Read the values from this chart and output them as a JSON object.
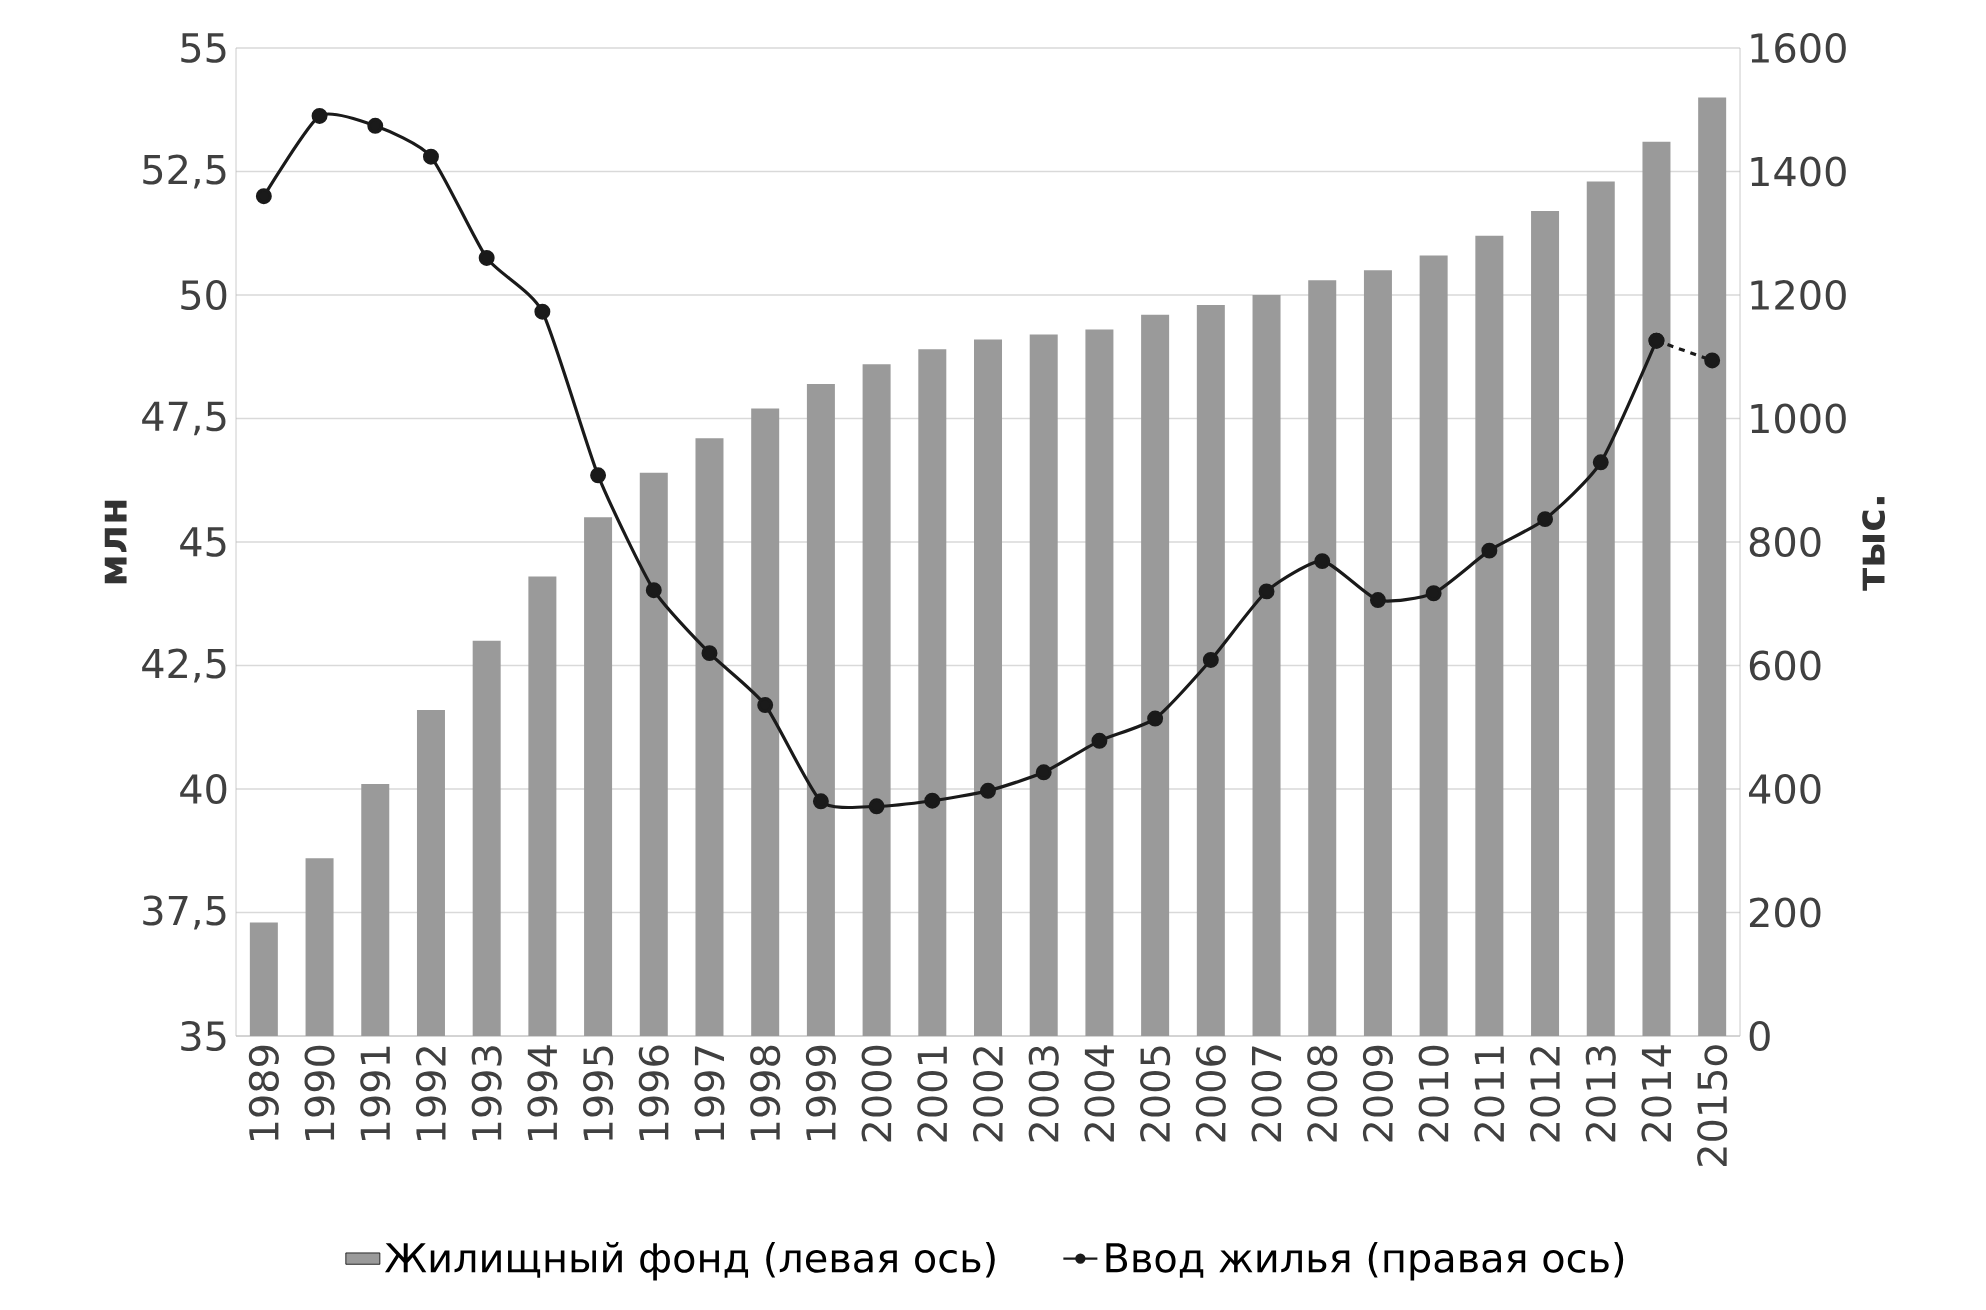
{
  "chart_data": {
    "type": "bar",
    "categories": [
      "1989",
      "1990",
      "1991",
      "1992",
      "1993",
      "1994",
      "1995",
      "1996",
      "1997",
      "1998",
      "1999",
      "2000",
      "2001",
      "2002",
      "2003",
      "2004",
      "2005",
      "2006",
      "2007",
      "2008",
      "2009",
      "2010",
      "2011",
      "2012",
      "2013",
      "2014",
      "2015о"
    ],
    "ylabel": "млн",
    "y2label": "тыс.",
    "ylim": [
      35,
      55
    ],
    "yticks": [
      35,
      {
        "value": 37.5,
        "label": "37,5"
      },
      40,
      {
        "value": 42.5,
        "label": "42,5"
      },
      45,
      {
        "value": 47.5,
        "label": "47,5"
      },
      50,
      {
        "value": 52.5,
        "label": "52,5"
      },
      55
    ],
    "y2lim": [
      0,
      1600
    ],
    "y2ticks": [
      0,
      200,
      400,
      600,
      800,
      1000,
      1200,
      1400,
      1600
    ],
    "grid": "y",
    "legend": "bottom",
    "series": [
      {
        "name": "Жилищный фонд (левая ось)",
        "color": "#9a9a9a",
        "values": [
          37.3,
          38.6,
          40.1,
          41.6,
          43.0,
          44.3,
          45.5,
          46.4,
          47.1,
          47.7,
          48.2,
          48.6,
          48.9,
          49.1,
          49.2,
          49.3,
          49.6,
          49.8,
          50.0,
          50.3,
          50.5,
          50.8,
          51.2,
          51.7,
          52.3,
          53.1,
          54.0
        ]
      },
      {
        "name": "Ввод жилья (правая ось)",
        "type": "line",
        "axis": "y2",
        "color": "#1a1a1a",
        "marker": "circle",
        "line_style": "solid",
        "values": [
          1360,
          1490,
          1474,
          1424,
          1260,
          1173,
          908,
          722,
          620,
          536,
          380,
          372,
          381,
          397,
          427,
          478,
          514,
          609,
          720,
          769,
          706,
          717,
          786,
          837,
          929,
          1126,
          null
        ]
      },
      {
        "type": "line",
        "axis": "y2",
        "color": "#1a1a1a",
        "marker": "circle",
        "line_style": "dashed",
        "values": [
          null,
          null,
          null,
          null,
          null,
          null,
          null,
          null,
          null,
          null,
          null,
          null,
          null,
          null,
          null,
          null,
          null,
          null,
          null,
          null,
          null,
          null,
          null,
          null,
          null,
          1126,
          1094
        ]
      }
    ]
  }
}
